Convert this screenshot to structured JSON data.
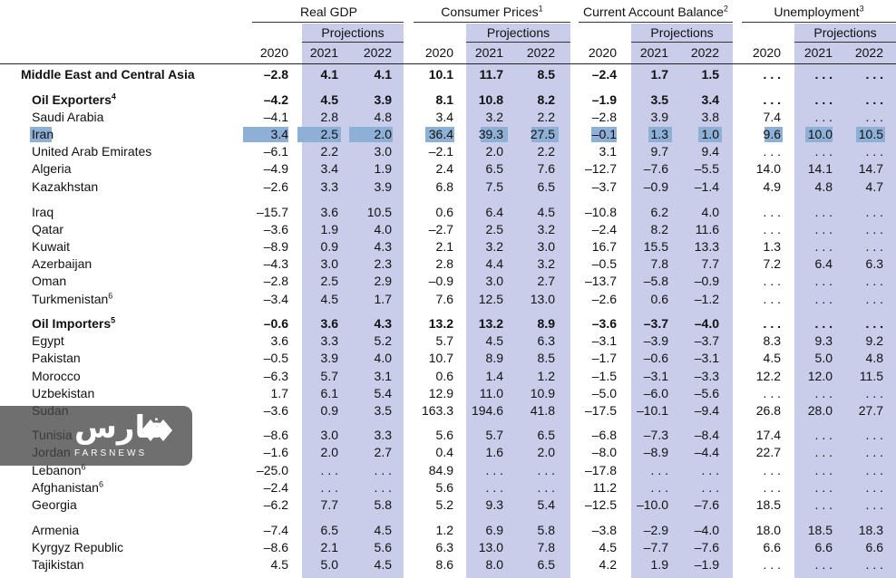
{
  "groups": [
    {
      "label": "Real GDP",
      "sup": ""
    },
    {
      "label": "Consumer Prices",
      "sup": "1"
    },
    {
      "label": "Current Account Balance",
      "sup": "2"
    },
    {
      "label": "Unemployment",
      "sup": "3"
    }
  ],
  "projections_label": "Projections",
  "years": [
    "2020",
    "2021",
    "2022"
  ],
  "colors": {
    "shade": "#c9cdea",
    "highlight": "#8fb0d6"
  },
  "rows": [
    {
      "name": "Middle East and Central Asia",
      "sup": "",
      "bold": true,
      "indent": 0,
      "vals": [
        "–2.8",
        "4.1",
        "4.1",
        "10.1",
        "11.7",
        "8.5",
        "–2.4",
        "1.7",
        "1.5",
        ". . .",
        ". . .",
        ". . ."
      ]
    },
    {
      "name": "Oil Exporters",
      "sup": "4",
      "bold": true,
      "indent": 1,
      "vals": [
        "–4.2",
        "4.5",
        "3.9",
        "8.1",
        "10.8",
        "8.2",
        "–1.9",
        "3.5",
        "3.4",
        ". . .",
        ". . .",
        ". . ."
      ]
    },
    {
      "name": "Saudi Arabia",
      "sup": "",
      "bold": false,
      "indent": 1,
      "vals": [
        "–4.1",
        "2.8",
        "4.8",
        "3.4",
        "3.2",
        "2.2",
        "–2.8",
        "3.9",
        "3.8",
        "7.4",
        ". . .",
        ". . ."
      ]
    },
    {
      "name": "Iran",
      "sup": "",
      "bold": false,
      "indent": 1,
      "highlight": true,
      "vals": [
        "3.4",
        "2.5",
        "2.0",
        "36.4",
        "39.3",
        "27.5",
        "–0.1",
        "1.3",
        "1.0",
        "9.6",
        "10.0",
        "10.5"
      ]
    },
    {
      "name": "United Arab Emirates",
      "sup": "",
      "bold": false,
      "indent": 1,
      "vals": [
        "–6.1",
        "2.2",
        "3.0",
        "–2.1",
        "2.0",
        "2.2",
        "3.1",
        "9.7",
        "9.4",
        ". . .",
        ". . .",
        ". . ."
      ]
    },
    {
      "name": "Algeria",
      "sup": "",
      "bold": false,
      "indent": 1,
      "vals": [
        "–4.9",
        "3.4",
        "1.9",
        "2.4",
        "6.5",
        "7.6",
        "–12.7",
        "–7.6",
        "–5.5",
        "14.0",
        "14.1",
        "14.7"
      ]
    },
    {
      "name": "Kazakhstan",
      "sup": "",
      "bold": false,
      "indent": 1,
      "vals": [
        "–2.6",
        "3.3",
        "3.9",
        "6.8",
        "7.5",
        "6.5",
        "–3.7",
        "–0.9",
        "–1.4",
        "4.9",
        "4.8",
        "4.7"
      ]
    },
    {
      "name": "Iraq",
      "sup": "",
      "bold": false,
      "indent": 1,
      "vals": [
        "–15.7",
        "3.6",
        "10.5",
        "0.6",
        "6.4",
        "4.5",
        "–10.8",
        "6.2",
        "4.0",
        ". . .",
        ". . .",
        ". . ."
      ]
    },
    {
      "name": "Qatar",
      "sup": "",
      "bold": false,
      "indent": 1,
      "vals": [
        "–3.6",
        "1.9",
        "4.0",
        "–2.7",
        "2.5",
        "3.2",
        "–2.4",
        "8.2",
        "11.6",
        ". . .",
        ". . .",
        ". . ."
      ]
    },
    {
      "name": "Kuwait",
      "sup": "",
      "bold": false,
      "indent": 1,
      "vals": [
        "–8.9",
        "0.9",
        "4.3",
        "2.1",
        "3.2",
        "3.0",
        "16.7",
        "15.5",
        "13.3",
        "1.3",
        ". . .",
        ". . ."
      ]
    },
    {
      "name": "Azerbaijan",
      "sup": "",
      "bold": false,
      "indent": 1,
      "vals": [
        "–4.3",
        "3.0",
        "2.3",
        "2.8",
        "4.4",
        "3.2",
        "–0.5",
        "7.8",
        "7.7",
        "7.2",
        "6.4",
        "6.3"
      ]
    },
    {
      "name": "Oman",
      "sup": "",
      "bold": false,
      "indent": 1,
      "vals": [
        "–2.8",
        "2.5",
        "2.9",
        "–0.9",
        "3.0",
        "2.7",
        "–13.7",
        "–5.8",
        "–0.9",
        ". . .",
        ". . .",
        ". . ."
      ]
    },
    {
      "name": "Turkmenistan",
      "sup": "6",
      "bold": false,
      "indent": 1,
      "vals": [
        "–3.4",
        "4.5",
        "1.7",
        "7.6",
        "12.5",
        "13.0",
        "–2.6",
        "0.6",
        "–1.2",
        ". . .",
        ". . .",
        ". . ."
      ]
    },
    {
      "name": "Oil Importers",
      "sup": "5",
      "bold": true,
      "indent": 1,
      "vals": [
        "–0.6",
        "3.6",
        "4.3",
        "13.2",
        "13.2",
        "8.9",
        "–3.6",
        "–3.7",
        "–4.0",
        ". . .",
        ". . .",
        ". . ."
      ]
    },
    {
      "name": "Egypt",
      "sup": "",
      "bold": false,
      "indent": 1,
      "vals": [
        "3.6",
        "3.3",
        "5.2",
        "5.7",
        "4.5",
        "6.3",
        "–3.1",
        "–3.9",
        "–3.7",
        "8.3",
        "9.3",
        "9.2"
      ]
    },
    {
      "name": "Pakistan",
      "sup": "",
      "bold": false,
      "indent": 1,
      "vals": [
        "–0.5",
        "3.9",
        "4.0",
        "10.7",
        "8.9",
        "8.5",
        "–1.7",
        "–0.6",
        "–3.1",
        "4.5",
        "5.0",
        "4.8"
      ]
    },
    {
      "name": "Morocco",
      "sup": "",
      "bold": false,
      "indent": 1,
      "vals": [
        "–6.3",
        "5.7",
        "3.1",
        "0.6",
        "1.4",
        "1.2",
        "–1.5",
        "–3.1",
        "–3.3",
        "12.2",
        "12.0",
        "11.5"
      ]
    },
    {
      "name": "Uzbekistan",
      "sup": "",
      "bold": false,
      "indent": 1,
      "vals": [
        "1.7",
        "6.1",
        "5.4",
        "12.9",
        "11.0",
        "10.9",
        "–5.0",
        "–6.0",
        "–5.6",
        ". . .",
        ". . .",
        ". . ."
      ]
    },
    {
      "name": "Sudan",
      "sup": "",
      "bold": false,
      "indent": 1,
      "vals": [
        "–3.6",
        "0.9",
        "3.5",
        "163.3",
        "194.6",
        "41.8",
        "–17.5",
        "–10.1",
        "–9.4",
        "26.8",
        "28.0",
        "27.7"
      ]
    },
    {
      "name": "Tunisia",
      "sup": "",
      "bold": false,
      "indent": 1,
      "vals": [
        "–8.6",
        "3.0",
        "3.3",
        "5.6",
        "5.7",
        "6.5",
        "–6.8",
        "–7.3",
        "–8.4",
        "17.4",
        ". . .",
        ". . ."
      ]
    },
    {
      "name": "Jordan",
      "sup": "",
      "bold": false,
      "indent": 1,
      "vals": [
        "–1.6",
        "2.0",
        "2.7",
        "0.4",
        "1.6",
        "2.0",
        "–8.0",
        "–8.9",
        "–4.4",
        "22.7",
        ". . .",
        ". . ."
      ]
    },
    {
      "name": "Lebanon",
      "sup": "6",
      "bold": false,
      "indent": 1,
      "vals": [
        "–25.0",
        ". . .",
        ". . .",
        "84.9",
        ". . .",
        ". . .",
        "–17.8",
        ". . .",
        ". . .",
        ". . .",
        ". . .",
        ". . ."
      ]
    },
    {
      "name": "Afghanistan",
      "sup": "6",
      "bold": false,
      "indent": 1,
      "vals": [
        "–2.4",
        ". . .",
        ". . .",
        "5.6",
        ". . .",
        ". . .",
        "11.2",
        ". . .",
        ". . .",
        ". . .",
        ". . .",
        ". . ."
      ]
    },
    {
      "name": "Georgia",
      "sup": "",
      "bold": false,
      "indent": 1,
      "vals": [
        "–6.2",
        "7.7",
        "5.8",
        "5.2",
        "9.3",
        "5.4",
        "–12.5",
        "–10.0",
        "–7.6",
        "18.5",
        ". . .",
        ". . ."
      ]
    },
    {
      "name": "Armenia",
      "sup": "",
      "bold": false,
      "indent": 1,
      "vals": [
        "–7.4",
        "6.5",
        "4.5",
        "1.2",
        "6.9",
        "5.8",
        "–3.8",
        "–2.9",
        "–4.0",
        "18.0",
        "18.5",
        "18.3"
      ]
    },
    {
      "name": "Kyrgyz Republic",
      "sup": "",
      "bold": false,
      "indent": 1,
      "vals": [
        "–8.6",
        "2.1",
        "5.6",
        "6.3",
        "13.0",
        "7.8",
        "4.5",
        "–7.7",
        "–7.6",
        "6.6",
        "6.6",
        "6.6"
      ]
    },
    {
      "name": "Tajikistan",
      "sup": "",
      "bold": false,
      "indent": 1,
      "vals": [
        "4.5",
        "5.0",
        "4.5",
        "8.6",
        "8.0",
        "6.5",
        "4.2",
        "1.9",
        "–1.9",
        ". . .",
        ". . .",
        ". . ."
      ]
    }
  ],
  "watermark": {
    "logo": "farsnews-logo-icon",
    "fa_text": "فارس",
    "en_text": "FARSNEWS"
  }
}
